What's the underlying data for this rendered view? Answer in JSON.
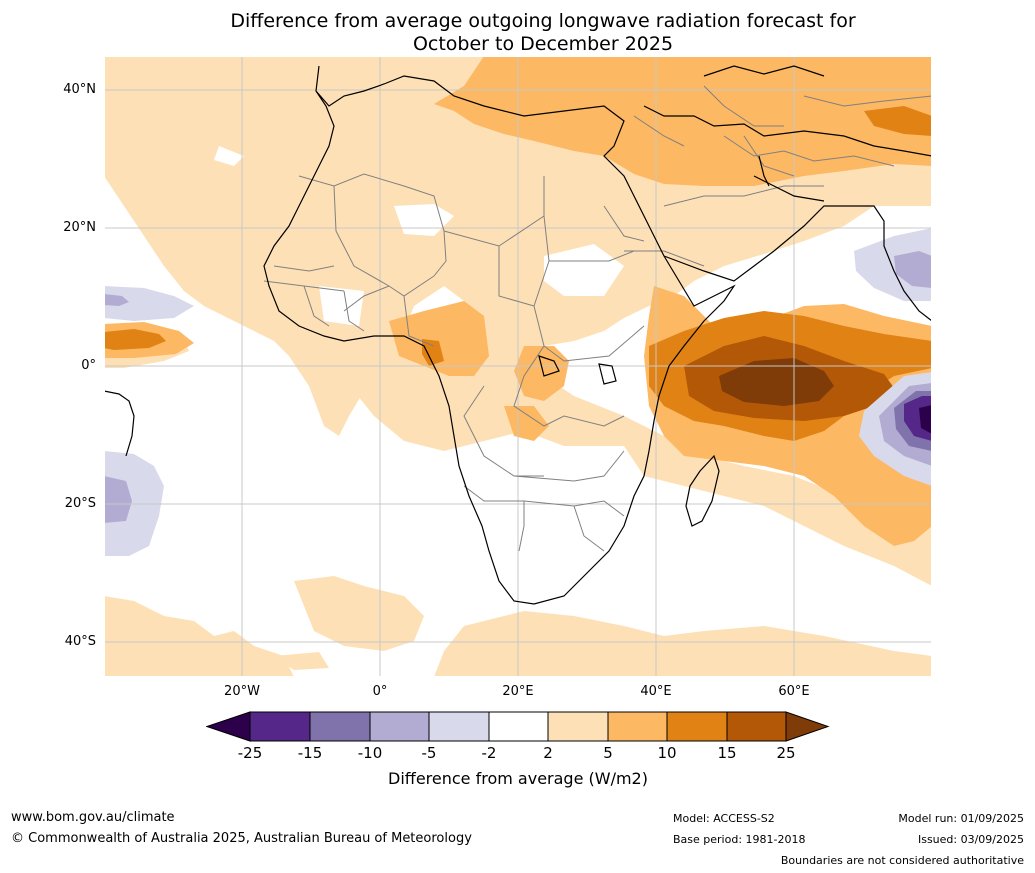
{
  "title_line1": "Difference from average outgoing longwave radiation forecast for",
  "title_line2": "October to December 2025",
  "lat_labels": [
    "40°N",
    "20°N",
    "0°",
    "20°S",
    "40°S"
  ],
  "lon_labels": [
    "20°W",
    "0°",
    "20°E",
    "40°E",
    "60°E"
  ],
  "colorbar": {
    "title": "Difference from average (W/m2)",
    "tick_labels": [
      "-25",
      "-15",
      "-10",
      "-5",
      "-2",
      "2",
      "5",
      "10",
      "15",
      "25"
    ],
    "colors": {
      "below_min": "#2d004b",
      "bins": [
        "#542788",
        "#8073ac",
        "#b2abd2",
        "#d8daeb",
        "#ffffff",
        "#fee0b6",
        "#fdb863",
        "#e08214",
        "#b35806"
      ],
      "above_max": "#7f3b08"
    }
  },
  "footer": {
    "url": "www.bom.gov.au/climate",
    "copyright": "© Commonwealth of Australia 2025, Australian Bureau of Meteorology",
    "model": "Model: ACCESS-S2",
    "base_period": "Base period: 1981-2018",
    "model_run": "Model run: 01/09/2025",
    "issued": "Issued: 03/09/2025",
    "boundaries": "Boundaries are not considered authoritative"
  }
}
